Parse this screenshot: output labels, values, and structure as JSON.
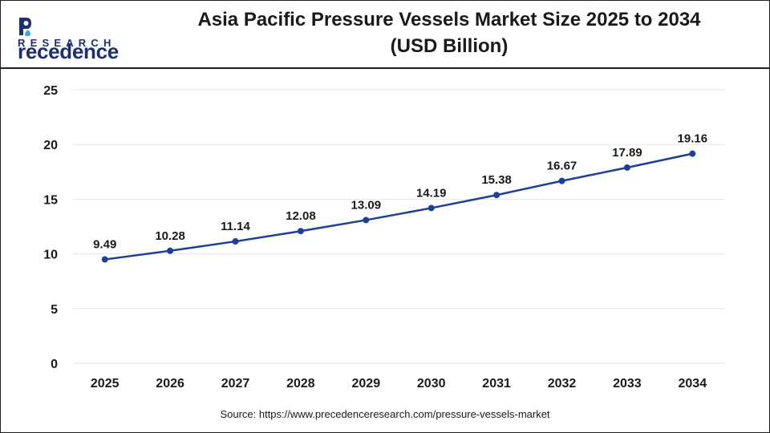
{
  "brand": {
    "name_rest": "recedence",
    "name_initial": "P",
    "tagline": "RESEARCH",
    "color": "#1d2f6f"
  },
  "title": {
    "line1": "Asia Pacific Pressure Vessels Market Size 2025 to 2034",
    "line2": "(USD Billion)"
  },
  "source": "Source: https://www.precedenceresearch.com/pressure-vessels-market",
  "chart_data": {
    "type": "line",
    "title": "Asia Pacific Pressure Vessels Market Size 2025 to 2034 (USD Billion)",
    "xlabel": "",
    "ylabel": "",
    "categories": [
      "2025",
      "2026",
      "2027",
      "2028",
      "2029",
      "2030",
      "2031",
      "2032",
      "2033",
      "2034"
    ],
    "series": [
      {
        "values": [
          9.49,
          10.28,
          11.14,
          12.08,
          13.09,
          14.19,
          15.38,
          16.67,
          17.89,
          19.16
        ],
        "labels": [
          "9.49",
          "10.28",
          "11.14",
          "12.08",
          "13.09",
          "14.19",
          "15.38",
          "16.67",
          "17.89",
          "19.16"
        ],
        "color": "#1f3e99"
      }
    ],
    "ylim": [
      0,
      25
    ],
    "yticks": [
      "0",
      "5",
      "10",
      "15",
      "20",
      "25"
    ],
    "grid": true,
    "gridColor": "#e6e6e6",
    "legend": "none"
  }
}
